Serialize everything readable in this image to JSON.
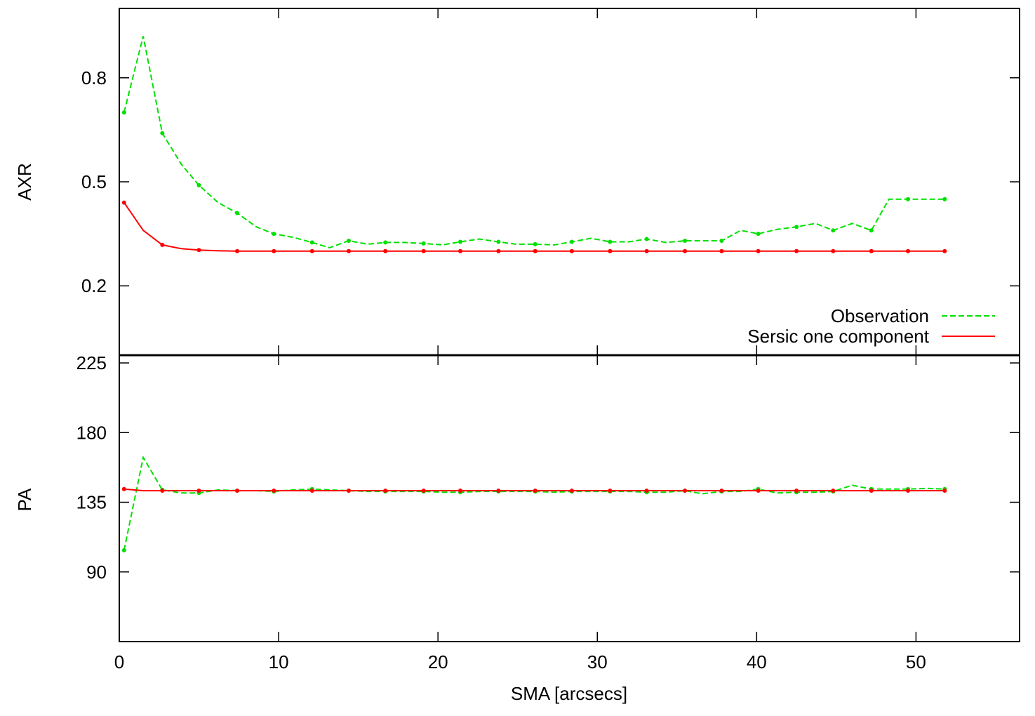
{
  "chart_data": [
    {
      "type": "line",
      "panel": "top",
      "ylabel": "AXR",
      "xlabel": "",
      "xlim": [
        0,
        56.5
      ],
      "ylim": [
        0.0,
        1.0
      ],
      "yticks": [
        {
          "value": 0.2,
          "label": "0.2"
        },
        {
          "value": 0.5,
          "label": "0.5"
        },
        {
          "value": 0.8,
          "label": "0.8"
        }
      ],
      "xticks": [
        0,
        10,
        20,
        30,
        40,
        50
      ],
      "legend": {
        "position": "bottom-right"
      },
      "series": [
        {
          "name": "Observation",
          "color": "#00e000",
          "style": "dashed",
          "x": [
            0.3,
            1.5,
            2.7,
            3.9,
            5.0,
            6.2,
            7.4,
            8.6,
            9.7,
            10.9,
            12.1,
            13.2,
            14.4,
            15.6,
            16.7,
            17.9,
            19.1,
            20.3,
            21.4,
            22.6,
            23.8,
            24.9,
            26.1,
            27.3,
            28.4,
            29.6,
            30.8,
            32.0,
            33.1,
            34.3,
            35.5,
            36.6,
            37.8,
            39.0,
            40.1,
            41.3,
            42.5,
            43.7,
            44.8,
            46.0,
            47.2,
            48.3,
            49.5,
            50.7,
            51.8
          ],
          "y": [
            0.7,
            0.92,
            0.64,
            0.55,
            0.49,
            0.44,
            0.41,
            0.37,
            0.35,
            0.34,
            0.325,
            0.31,
            0.33,
            0.32,
            0.325,
            0.325,
            0.322,
            0.318,
            0.327,
            0.335,
            0.327,
            0.32,
            0.32,
            0.318,
            0.327,
            0.337,
            0.327,
            0.327,
            0.335,
            0.325,
            0.33,
            0.33,
            0.33,
            0.36,
            0.35,
            0.363,
            0.37,
            0.38,
            0.36,
            0.38,
            0.36,
            0.45,
            0.45,
            0.45,
            0.45
          ]
        },
        {
          "name": "Sersic one component",
          "color": "#ff0000",
          "style": "solid",
          "x": [
            0.3,
            1.5,
            2.7,
            3.9,
            5.0,
            6.2,
            7.4,
            8.6,
            9.7,
            10.9,
            12.1,
            13.2,
            14.4,
            15.6,
            16.7,
            17.9,
            19.1,
            20.3,
            21.4,
            22.6,
            23.8,
            24.9,
            26.1,
            27.3,
            28.4,
            29.6,
            30.8,
            32.0,
            33.1,
            34.3,
            35.5,
            36.6,
            37.8,
            39.0,
            40.1,
            41.3,
            42.5,
            43.7,
            44.8,
            46.0,
            47.2,
            48.3,
            49.5,
            50.7,
            51.8
          ],
          "y": [
            0.44,
            0.36,
            0.318,
            0.307,
            0.303,
            0.301,
            0.3,
            0.3,
            0.3,
            0.3,
            0.3,
            0.3,
            0.3,
            0.3,
            0.3,
            0.3,
            0.3,
            0.3,
            0.3,
            0.3,
            0.3,
            0.3,
            0.3,
            0.3,
            0.3,
            0.3,
            0.3,
            0.3,
            0.3,
            0.3,
            0.3,
            0.3,
            0.3,
            0.3,
            0.3,
            0.3,
            0.3,
            0.3,
            0.3,
            0.3,
            0.3,
            0.3,
            0.3,
            0.3,
            0.3
          ]
        }
      ]
    },
    {
      "type": "line",
      "panel": "bottom",
      "ylabel": "PA",
      "xlabel": "SMA [arcsecs]",
      "xlim": [
        0,
        56.5
      ],
      "ylim": [
        45,
        230
      ],
      "yticks": [
        {
          "value": 90,
          "label": "90"
        },
        {
          "value": 135,
          "label": "135"
        },
        {
          "value": 180,
          "label": "180"
        },
        {
          "value": 225,
          "label": "225"
        }
      ],
      "xticks": [
        {
          "value": 0,
          "label": "0"
        },
        {
          "value": 10,
          "label": "10"
        },
        {
          "value": 20,
          "label": "20"
        },
        {
          "value": 30,
          "label": "30"
        },
        {
          "value": 40,
          "label": "40"
        },
        {
          "value": 50,
          "label": "50"
        }
      ],
      "series": [
        {
          "name": "Observation",
          "color": "#00e000",
          "style": "dashed",
          "x": [
            0.3,
            1.5,
            2.7,
            3.9,
            5.0,
            6.2,
            7.4,
            8.6,
            9.7,
            10.9,
            12.1,
            13.2,
            14.4,
            15.6,
            16.7,
            17.9,
            19.1,
            20.3,
            21.4,
            22.6,
            23.8,
            24.9,
            26.1,
            27.3,
            28.4,
            29.6,
            30.8,
            32.0,
            33.1,
            34.3,
            35.5,
            36.6,
            37.8,
            39.0,
            40.1,
            41.3,
            42.5,
            43.7,
            44.8,
            46.0,
            47.2,
            48.3,
            49.5,
            50.7,
            51.8
          ],
          "y": [
            104,
            164,
            143,
            141,
            141,
            143,
            142.5,
            142.5,
            142,
            143,
            143.5,
            143,
            142.5,
            142,
            142,
            142,
            142,
            141.5,
            141.5,
            142,
            142,
            142,
            142,
            141.5,
            142,
            142,
            142,
            142,
            141.5,
            141.5,
            142.5,
            140.5,
            142,
            142,
            143.5,
            141,
            141.5,
            141.5,
            142,
            146,
            143.5,
            143.5,
            143.5,
            144,
            143.5
          ]
        },
        {
          "name": "Sersic one component",
          "color": "#ff0000",
          "style": "solid",
          "x": [
            0.3,
            1.5,
            2.7,
            3.9,
            5.0,
            6.2,
            7.4,
            8.6,
            9.7,
            10.9,
            12.1,
            13.2,
            14.4,
            15.6,
            16.7,
            17.9,
            19.1,
            20.3,
            21.4,
            22.6,
            23.8,
            24.9,
            26.1,
            27.3,
            28.4,
            29.6,
            30.8,
            32.0,
            33.1,
            34.3,
            35.5,
            36.6,
            37.8,
            39.0,
            40.1,
            41.3,
            42.5,
            43.7,
            44.8,
            46.0,
            47.2,
            48.3,
            49.5,
            50.7,
            51.8
          ],
          "y": [
            143.5,
            142.5,
            142.5,
            142.5,
            142.5,
            142.5,
            142.5,
            142.5,
            142.5,
            142.5,
            142.5,
            142.5,
            142.5,
            142.5,
            142.5,
            142.5,
            142.5,
            142.5,
            142.5,
            142.5,
            142.5,
            142.5,
            142.5,
            142.5,
            142.5,
            142.5,
            142.5,
            142.5,
            142.5,
            142.5,
            142.5,
            142.5,
            142.5,
            142.5,
            142.5,
            142.5,
            142.5,
            142.5,
            142.5,
            142.5,
            142.5,
            142.5,
            142.5,
            142.5,
            142.5
          ]
        }
      ]
    }
  ]
}
